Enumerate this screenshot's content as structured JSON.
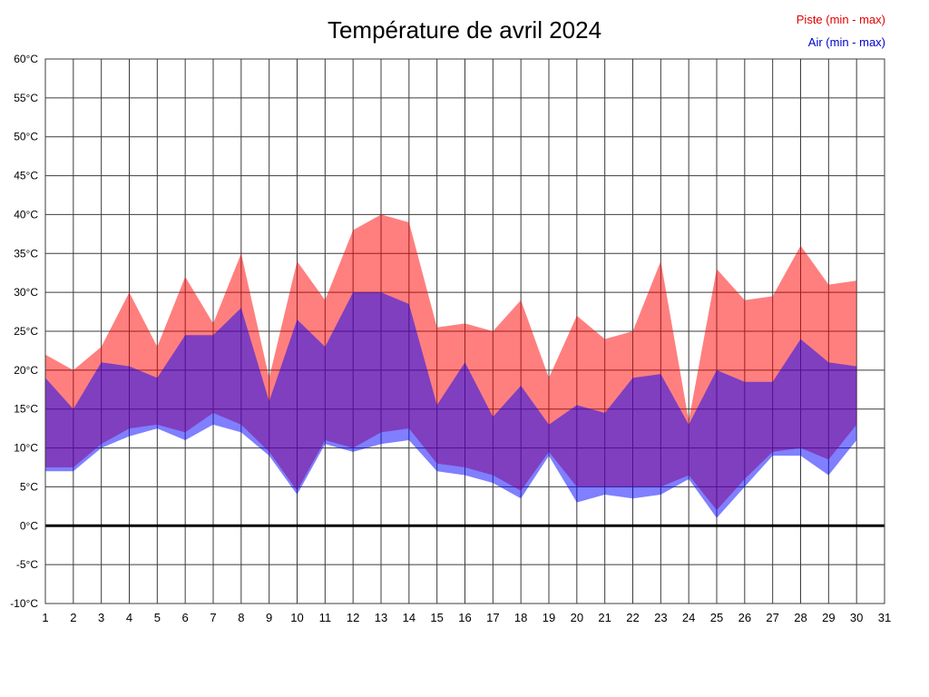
{
  "chart_data": {
    "type": "area",
    "title": "Température de avril 2024",
    "legend": {
      "piste": "Piste (min - max)",
      "air": "Air (min - max)"
    },
    "xlabel": "",
    "ylabel": "",
    "ylim": [
      -10,
      60
    ],
    "xlim": [
      1,
      31
    ],
    "grid": true,
    "legend_position": "top-right",
    "x": [
      1,
      2,
      3,
      4,
      5,
      6,
      7,
      8,
      9,
      10,
      11,
      12,
      13,
      14,
      15,
      16,
      17,
      18,
      19,
      20,
      21,
      22,
      23,
      24,
      25,
      26,
      27,
      28,
      29,
      30
    ],
    "series": [
      {
        "name": "piste_max",
        "values": [
          22,
          20,
          23,
          30,
          23,
          32,
          26,
          35,
          19,
          34,
          29,
          38,
          40,
          39,
          25.5,
          26,
          25,
          29,
          19,
          27,
          24,
          25,
          34,
          13.5,
          33,
          29,
          29.5,
          36,
          31,
          31.5
        ]
      },
      {
        "name": "piste_min",
        "values": [
          7.5,
          7.5,
          10.5,
          12.5,
          13,
          12,
          14.5,
          13,
          9.5,
          4.5,
          11,
          10,
          12,
          12.5,
          8,
          7.5,
          6.5,
          4.5,
          9.5,
          5,
          5,
          5,
          5,
          6.5,
          2,
          6,
          9.5,
          10,
          8.5,
          13
        ]
      },
      {
        "name": "air_max",
        "values": [
          19,
          15,
          21,
          20.5,
          19,
          24.5,
          24.5,
          28,
          16,
          26.5,
          23,
          30,
          30,
          28.5,
          15.5,
          21,
          14,
          18,
          13,
          15.5,
          14.5,
          19,
          19.5,
          13,
          20,
          18.5,
          18.5,
          24,
          21,
          20.5
        ]
      },
      {
        "name": "air_min",
        "values": [
          7,
          7,
          10,
          11.5,
          12.5,
          11,
          13,
          12,
          9,
          4,
          10.5,
          9.5,
          10.5,
          11,
          7,
          6.5,
          5.5,
          3.5,
          9,
          3,
          4,
          3.5,
          4,
          6,
          1,
          5,
          9,
          9,
          6.5,
          11
        ]
      }
    ],
    "y_tick_labels": [
      "60°C",
      "55°C",
      "50°C",
      "45°C",
      "40°C",
      "35°C",
      "30°C",
      "25°C",
      "20°C",
      "15°C",
      "10°C",
      "5°C",
      "0°C",
      "-5°C",
      "-10°C"
    ],
    "x_tick_labels": [
      "1",
      "2",
      "3",
      "4",
      "5",
      "6",
      "7",
      "8",
      "9",
      "10",
      "11",
      "12",
      "13",
      "14",
      "15",
      "16",
      "17",
      "18",
      "19",
      "20",
      "21",
      "22",
      "23",
      "24",
      "25",
      "26",
      "27",
      "28",
      "29",
      "30",
      "31"
    ],
    "colors": {
      "piste_fill": "rgba(255,0,0,0.5)",
      "air_fill": "rgba(0,0,255,0.5)",
      "piste_text": "#e00000",
      "air_text": "#0000d0",
      "grid": "#3c3c3c",
      "zero_line": "#000000",
      "tick_text": "#000000"
    }
  }
}
